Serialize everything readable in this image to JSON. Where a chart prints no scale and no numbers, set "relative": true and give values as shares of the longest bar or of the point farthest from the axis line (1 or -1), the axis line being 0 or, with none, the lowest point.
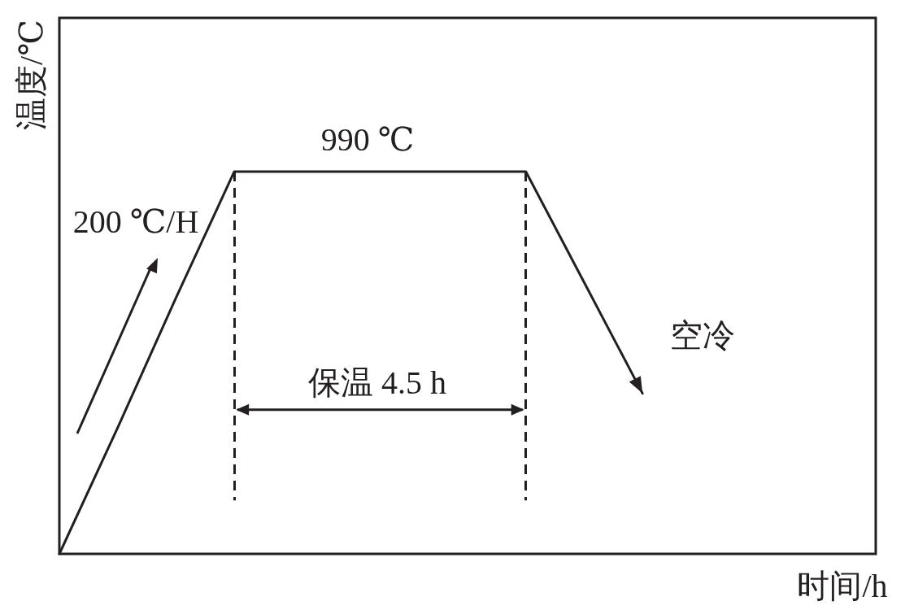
{
  "chart_data": {
    "type": "line",
    "xlabel": "时间/h",
    "ylabel": "温度/℃",
    "categories": [
      null,
      null,
      null,
      null,
      null,
      null,
      null,
      null,
      null,
      null,
      null,
      null,
      null,
      null,
      null
    ],
    "series": [
      {
        "color": "#231f20",
        "values": [
          0,
          0.33,
          0.67,
          1,
          1,
          1,
          1,
          1,
          1,
          0.71,
          0.42,
          null,
          null,
          null,
          null
        ]
      }
    ],
    "relative": true,
    "marker": "none",
    "line_style": "solid",
    "grid": false,
    "annotations": [
      "990 ℃",
      "200 ℃/H",
      "保温 4.5 h",
      "空冷"
    ]
  }
}
